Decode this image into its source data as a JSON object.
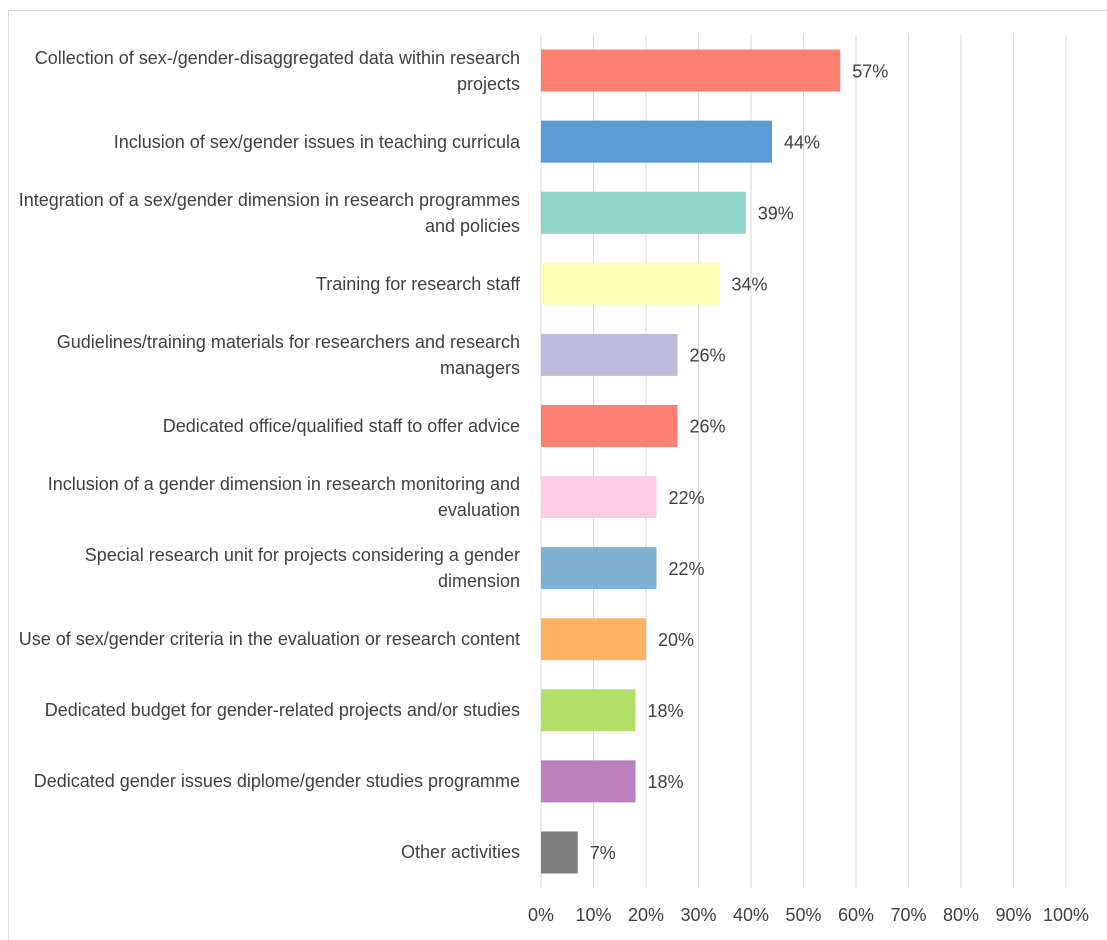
{
  "chart_data": {
    "type": "bar",
    "orientation": "horizontal",
    "categories": [
      "Collection of sex-/gender-disaggregated data within research projects",
      "Inclusion of sex/gender issues in teaching curricula",
      "Integration of a sex/gender dimension in research programmes and policies",
      "Training for research staff",
      "Gudielines/training materials for researchers and research managers",
      "Dedicated office/qualified staff to offer advice",
      "Inclusion of a gender dimension in research monitoring and evaluation",
      "Special research unit for projects considering a gender dimension",
      "Use of sex/gender criteria in the evaluation or research content",
      "Dedicated budget for gender-related projects and/or studies",
      "Dedicated gender issues diplome/gender studies programme",
      "Other activities"
    ],
    "values": [
      57,
      44,
      39,
      34,
      26,
      26,
      22,
      22,
      20,
      18,
      18,
      7
    ],
    "value_labels": [
      "57%",
      "44%",
      "39%",
      "34%",
      "26%",
      "26%",
      "22%",
      "22%",
      "20%",
      "18%",
      "18%",
      "7%"
    ],
    "colors": [
      "#fb8072",
      "#5b9bd5",
      "#8dd3c7",
      "#ffffb3",
      "#bebada",
      "#fb8072",
      "#fccde5",
      "#80b1d3",
      "#fdb462",
      "#b3de69",
      "#bc80bd",
      "#7f7f7f"
    ],
    "xlim": [
      0,
      100
    ],
    "xticks": [
      {
        "value": 0,
        "label": "0%"
      },
      {
        "value": 10,
        "label": "10%"
      },
      {
        "value": 20,
        "label": "20%"
      },
      {
        "value": 30,
        "label": "30%"
      },
      {
        "value": 40,
        "label": "40%"
      },
      {
        "value": 50,
        "label": "50%"
      },
      {
        "value": 60,
        "label": "60%"
      },
      {
        "value": 70,
        "label": "70%"
      },
      {
        "value": 80,
        "label": "80%"
      },
      {
        "value": 90,
        "label": "90%"
      },
      {
        "value": 100,
        "label": "100%"
      }
    ],
    "grid": true
  }
}
